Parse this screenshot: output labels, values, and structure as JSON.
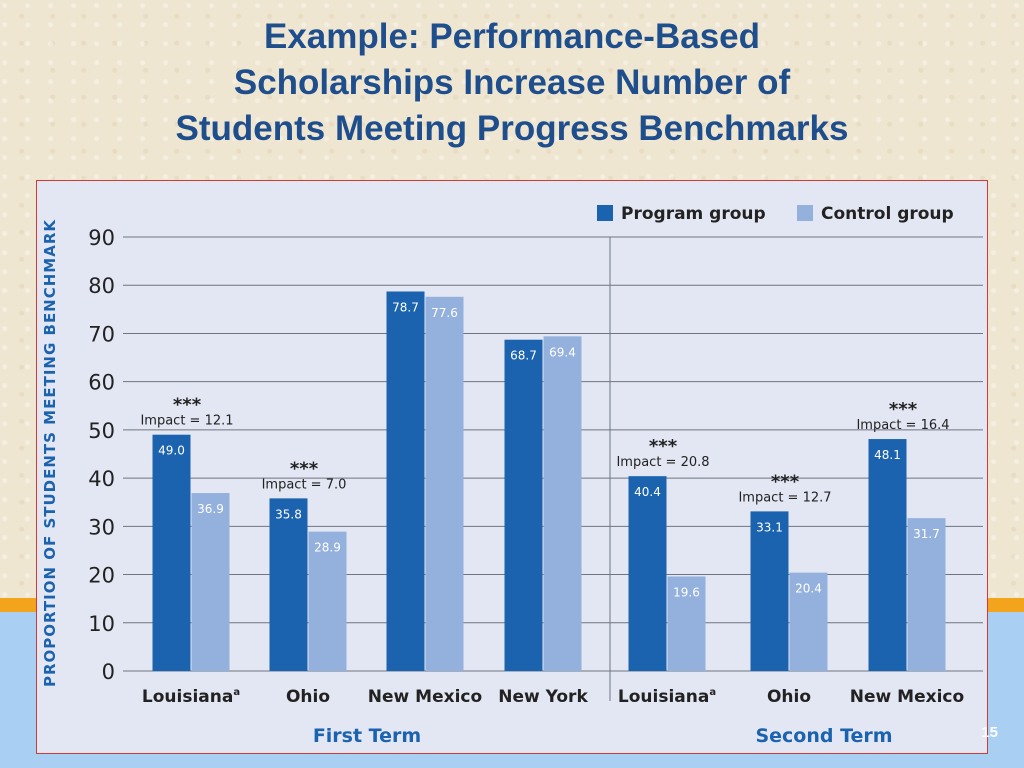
{
  "slide": {
    "title_lines": [
      "Example: Performance-Based",
      "Scholarships Increase Number of",
      "Students Meeting Progress Benchmarks"
    ],
    "page_number": "15"
  },
  "colors": {
    "program": "#1b63ae",
    "control": "#94b1dd",
    "title": "#1f4e8c",
    "axis_text": "#222222",
    "term_label": "#1b63ae"
  },
  "chart_data": {
    "type": "bar",
    "ylabel": "PROPORTION OF STUDENTS MEETING BENCHMARK",
    "ylim": [
      0,
      90
    ],
    "yticks": [
      0,
      10,
      20,
      30,
      40,
      50,
      60,
      70,
      80,
      90
    ],
    "grid": true,
    "legend_position": "top-right",
    "categories": [
      "Louisiana",
      "Ohio",
      "New Mexico",
      "New York",
      "Louisiana",
      "Ohio",
      "New Mexico"
    ],
    "category_superscripts": [
      "a",
      "",
      "",
      "",
      "a",
      "",
      ""
    ],
    "groups": [
      {
        "label": "First Term",
        "count": 4
      },
      {
        "label": "Second Term",
        "count": 3
      }
    ],
    "series": [
      {
        "name": "Program group",
        "values": [
          49.0,
          35.8,
          78.7,
          68.7,
          40.4,
          33.1,
          48.1
        ],
        "labels": [
          "49.0",
          "35.8",
          "78.7",
          "68.7",
          "40.4",
          "33.1",
          "48.1"
        ]
      },
      {
        "name": "Control group",
        "values": [
          36.9,
          28.9,
          77.6,
          69.4,
          19.6,
          20.4,
          31.7
        ],
        "labels": [
          "36.9",
          "28.9",
          "77.6",
          "69.4",
          "19.6",
          "20.4",
          "31.7"
        ]
      }
    ],
    "impacts": [
      {
        "category_index": 0,
        "text": "Impact = 12.1",
        "stars": "***"
      },
      {
        "category_index": 1,
        "text": "Impact = 7.0",
        "stars": "***"
      },
      {
        "category_index": 4,
        "text": "Impact = 20.8",
        "stars": "***"
      },
      {
        "category_index": 5,
        "text": "Impact = 12.7",
        "stars": "***"
      },
      {
        "category_index": 6,
        "text": "Impact = 16.4",
        "stars": "***"
      }
    ]
  }
}
